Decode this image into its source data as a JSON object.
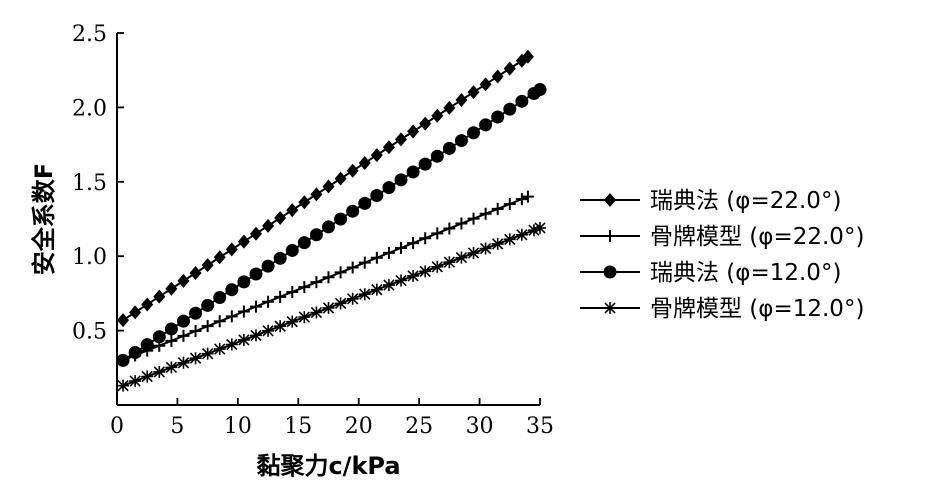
{
  "chart_data": {
    "type": "line",
    "xlabel": "黏聚力c/kPa",
    "ylabel": "安全系数F",
    "xlim": [
      0,
      35
    ],
    "ylim": [
      0,
      2.5
    ],
    "xticks": [
      "0",
      "5",
      "10",
      "15",
      "20",
      "25",
      "30",
      "35"
    ],
    "yticks": [
      "0.5",
      "1.0",
      "1.5",
      "2.0",
      "2.5"
    ],
    "grid": false,
    "legend_position": "right",
    "series": [
      {
        "name": "瑞典法 (φ=22.0°)",
        "marker": "diamond",
        "x_start": 0.5,
        "x_end": 34,
        "y_start": 0.57,
        "y_end": 2.34
      },
      {
        "name": "骨牌模型 (φ=22.0°)",
        "marker": "plus",
        "x_start": 0.5,
        "x_end": 34,
        "y_start": 0.3,
        "y_end": 1.4
      },
      {
        "name": "瑞典法 (φ=12.0°)",
        "marker": "circle",
        "x_start": 0.5,
        "x_end": 35,
        "y_start": 0.3,
        "y_end": 2.12
      },
      {
        "name": "骨牌模型 (φ=12.0°)",
        "marker": "asterisk",
        "x_start": 0.5,
        "x_end": 35,
        "y_start": 0.13,
        "y_end": 1.19
      }
    ],
    "point_step": 1.0
  }
}
